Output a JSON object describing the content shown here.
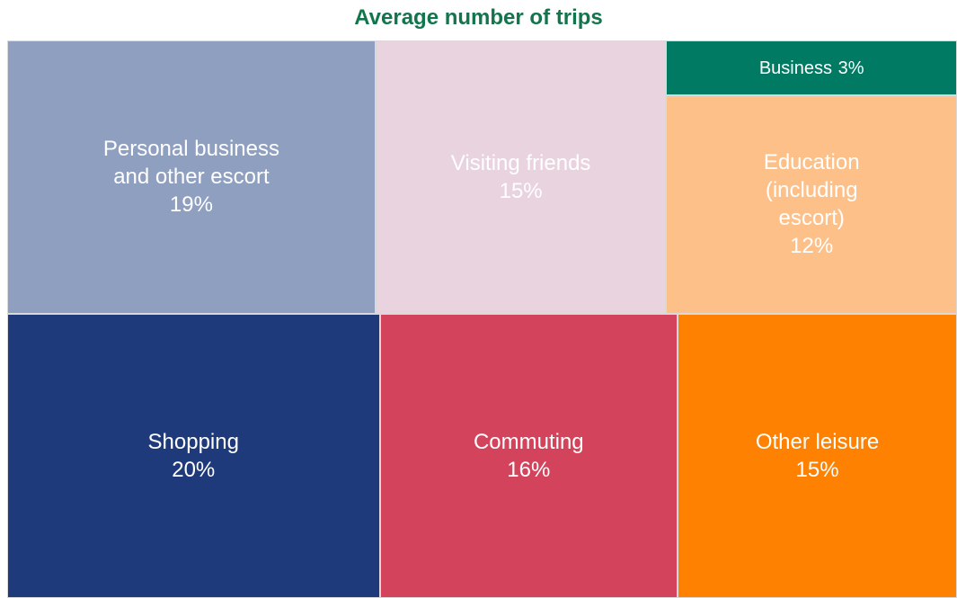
{
  "chart_data": {
    "type": "treemap",
    "title": "Average number of trips",
    "categories": [
      "Personal business and other escort",
      "Visiting friends",
      "Business",
      "Education (including escort)",
      "Shopping",
      "Commuting",
      "Other leisure"
    ],
    "values": [
      19,
      15,
      3,
      12,
      20,
      16,
      15
    ],
    "value_labels": [
      "19%",
      "15%",
      "3%",
      "12%",
      "20%",
      "16%",
      "15%"
    ],
    "colors": [
      "#8f9fbf",
      "#e8d3de",
      "#007a63",
      "#fdc088",
      "#1f3a7b",
      "#d3435c",
      "#fe8101"
    ]
  }
}
